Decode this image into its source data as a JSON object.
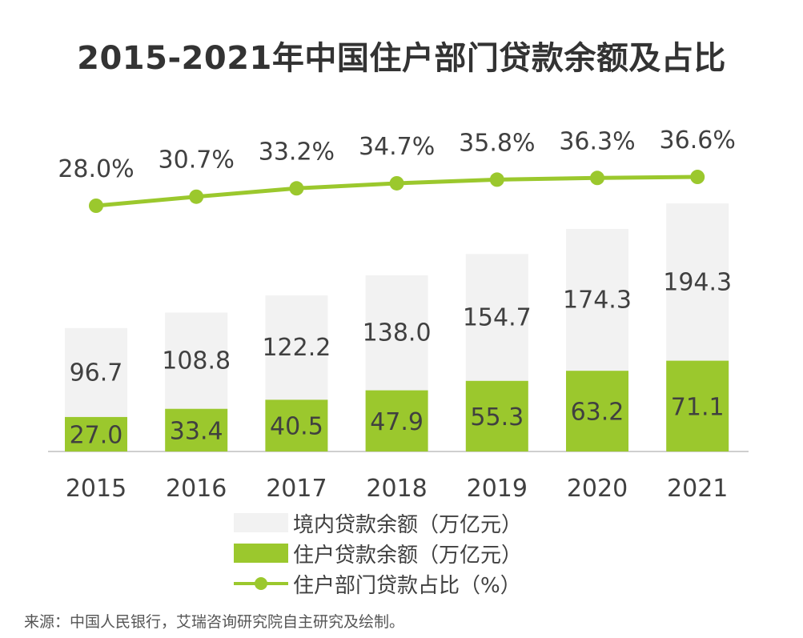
{
  "title": "2015-2021年中国住户部门贷款余额及占比",
  "source": "来源：中国人民银行，艾瑞咨询研究院自主研究及绘制。",
  "colors": {
    "total_bar": "#f2f2f2",
    "household_bar": "#9bc82d",
    "line": "#9bc82d",
    "text": "#404040",
    "axis": "#bfbfbf"
  },
  "legend": [
    {
      "label": "境内贷款余额（万亿元）",
      "swatch": "gray"
    },
    {
      "label": "住户贷款余额（万亿元）",
      "swatch": "green"
    },
    {
      "label": "住户部门贷款占比（%）",
      "swatch": "line"
    }
  ],
  "chart_data": {
    "type": "bar",
    "bar_mode": "overlay",
    "categories": [
      "2015",
      "2016",
      "2017",
      "2018",
      "2019",
      "2020",
      "2021"
    ],
    "series": [
      {
        "name": "境内贷款余额（万亿元）",
        "type": "bar",
        "values": [
          96.7,
          108.8,
          122.2,
          138.0,
          154.7,
          174.3,
          194.3
        ],
        "labels": [
          "96.7",
          "108.8",
          "122.2",
          "138.0",
          "154.7",
          "174.3",
          "194.3"
        ]
      },
      {
        "name": "住户贷款余额（万亿元）",
        "type": "bar",
        "values": [
          27.0,
          33.4,
          40.5,
          47.9,
          55.3,
          63.2,
          71.1
        ],
        "labels": [
          "27.0",
          "33.4",
          "40.5",
          "47.9",
          "55.3",
          "63.2",
          "71.1"
        ]
      },
      {
        "name": "住户部门贷款占比（%）",
        "type": "line",
        "values": [
          28.0,
          30.7,
          33.2,
          34.7,
          35.8,
          36.3,
          36.6
        ],
        "labels": [
          "28.0%",
          "30.7%",
          "33.2%",
          "34.7%",
          "35.8%",
          "36.3%",
          "36.6%"
        ]
      }
    ],
    "legend_position": "bottom",
    "grid": false
  }
}
